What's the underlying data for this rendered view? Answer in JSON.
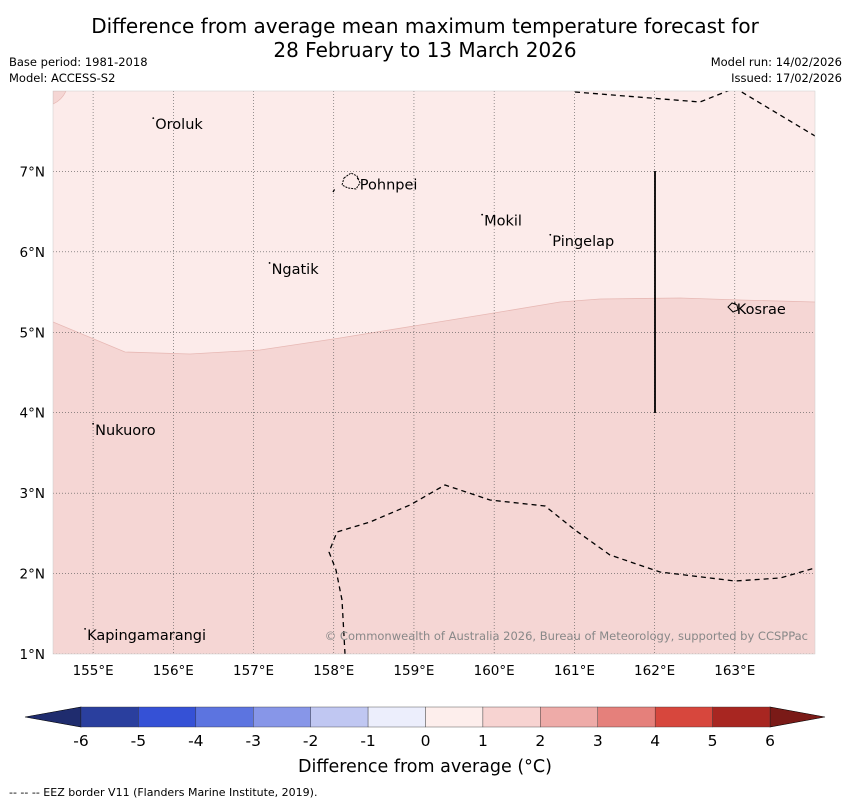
{
  "title": {
    "line1": "Difference from average mean maximum temperature forecast for",
    "line2": "28 February to 13 March 2026"
  },
  "meta": {
    "base_period": "Base period: 1981-2018",
    "model": "Model: ACCESS-S2",
    "model_run": "Model run: 14/02/2026",
    "issued": "Issued: 17/02/2026"
  },
  "map": {
    "lon_range": [
      154.5,
      164.0
    ],
    "lat_range": [
      1.0,
      8.0
    ],
    "lon_ticks": [
      "155°E",
      "156°E",
      "157°E",
      "158°E",
      "159°E",
      "160°E",
      "161°E",
      "162°E",
      "163°E"
    ],
    "lat_ticks": [
      "1°N",
      "2°N",
      "3°N",
      "4°N",
      "5°N",
      "6°N",
      "7°N"
    ],
    "places": [
      {
        "name": "Oroluk",
        "lon": 155.75,
        "lat": 7.6
      },
      {
        "name": "Pohnpei",
        "lon": 158.3,
        "lat": 6.85
      },
      {
        "name": "Mokil",
        "lon": 159.85,
        "lat": 6.4
      },
      {
        "name": "Pingelap",
        "lon": 160.7,
        "lat": 6.15
      },
      {
        "name": "Ngatik",
        "lon": 157.2,
        "lat": 5.8
      },
      {
        "name": "Kosrae",
        "lon": 163.0,
        "lat": 5.3
      },
      {
        "name": "Nukuoro",
        "lon": 155.0,
        "lat": 3.8
      },
      {
        "name": "Kapingamarangi",
        "lon": 154.9,
        "lat": 1.25
      }
    ],
    "anomaly_regions": [
      {
        "range": "0 to 1",
        "color": "#fcebea"
      },
      {
        "range": "1 to 2",
        "color": "#f5d6d4"
      }
    ],
    "credit": "© Commonwealth of Australia 2026, Bureau of Meteorology, supported by CCSPPac"
  },
  "colorbar": {
    "ticks": [
      "-6",
      "-5",
      "-4",
      "-3",
      "-2",
      "-1",
      "0",
      "1",
      "2",
      "3",
      "4",
      "5",
      "6"
    ],
    "colors": [
      "#2a3f9e",
      "#3551d6",
      "#5c74e0",
      "#8796e8",
      "#c0c7f2",
      "#eceefc",
      "#fdeeec",
      "#f7d3d1",
      "#eeaba8",
      "#e5807b",
      "#d7473d",
      "#a82621"
    ],
    "under_color": "#1f2c6e",
    "over_color": "#7a1a17",
    "label": "Difference from average (°C)"
  },
  "footnote": "--  --  -- EEZ border V11 (Flanders Marine Institute, 2019)."
}
